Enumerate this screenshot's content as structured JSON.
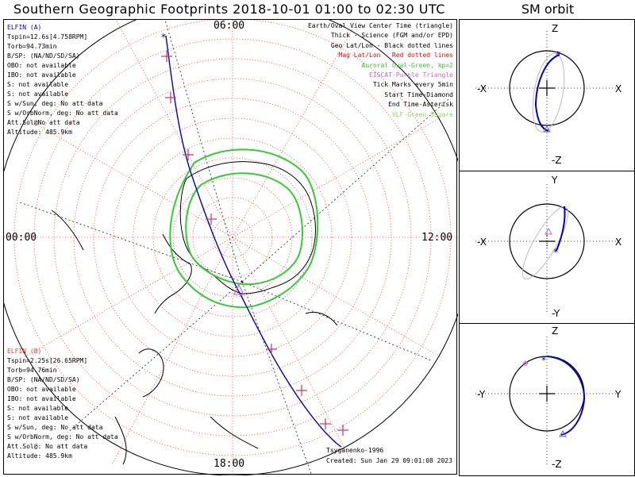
{
  "title": "Southern Geographic Footprints 2018-10-01 01:00 to 02:30 UTC",
  "sm_title": "SM orbit",
  "elfin_a": {
    "header": "ELFIN (A)",
    "lines": [
      "Tspin=12.6s[4.758RPM]",
      "Torb=94.73min",
      "B/SP: (NA/ND/SD/SA)",
      "OBO: not available",
      "IBO: not available",
      "S: not available",
      "S: not available",
      "S w/Sun, deg: No att data",
      "S w/OrbNorm, deg: No att data",
      "Att.Sol@No att data",
      "Altitude: 485.9km"
    ],
    "color": "#0000cc"
  },
  "elfin_b": {
    "header": "ELFIN (B)",
    "lines": [
      "Tspin=2.25s[26.65RPM]",
      "Torb=94.76min",
      "B/SP: (NA/ND/SD/SA)",
      "OBO: not available",
      "IBO: not available",
      "S: not available",
      "S: not available",
      "S w/Sun, deg: No att data",
      "S w/OrbNorm, deg: No att data",
      "Att.Sol@: No att data",
      "Altitude: 485.9km"
    ],
    "color": "#ff3333"
  },
  "legend": [
    {
      "text": "Earth/Oval View Center Time (triangle)",
      "color": "#000000"
    },
    {
      "text": "Thick - Science (FGM and/or EPD)",
      "color": "#000000"
    },
    {
      "text": "Geo Lat/Lon - Black dotted lines",
      "color": "#000000"
    },
    {
      "text": "Mag Lat/Lon - Red dotted lines",
      "color": "#ff0000"
    },
    {
      "text": "Auroral Oval-Green, kp=2",
      "color": "#33cc33"
    },
    {
      "text": "EISCAT-Purple Triangle",
      "color": "#cc66cc"
    },
    {
      "text": "Tick Marks every 5min",
      "color": "#000000"
    },
    {
      "text": "Start Time-Diamond",
      "color": "#000000"
    },
    {
      "text": "End Time-Asterisk",
      "color": "#000000"
    },
    {
      "text": "VLF-Green Square",
      "color": "#99cc66"
    }
  ],
  "time_labels": {
    "top": "06:00",
    "left": "00:00",
    "right": "12:00",
    "bottom": "18:00"
  },
  "credits": [
    "Tsyganenko-1996",
    "Created: Sun Jan 29 09:01:08 2023"
  ],
  "panels": [
    {
      "name": "xz",
      "top": "Z",
      "bottom": "-Z",
      "left": "-X",
      "right": "X"
    },
    {
      "name": "xy",
      "top": "Y",
      "bottom": "-Y",
      "left": "-X",
      "right": "X"
    },
    {
      "name": "yz",
      "top": "Z",
      "bottom": "-Z",
      "left": "-Y",
      "right": "Y"
    }
  ]
}
